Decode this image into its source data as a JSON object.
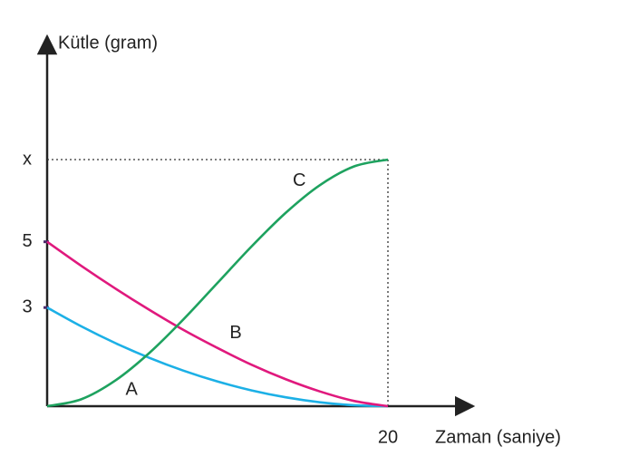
{
  "chart_data": {
    "type": "line",
    "y_label": "Kütle (gram)",
    "x_label": "Zaman (saniye)",
    "x": [
      0,
      2,
      4,
      6,
      8,
      10,
      12,
      14,
      16,
      18,
      20
    ],
    "xlim": [
      0,
      25
    ],
    "ylim": [
      0,
      11.25
    ],
    "xticks": [
      20
    ],
    "yticks": [
      3,
      5,
      {
        "value": 7.5,
        "label": "x"
      }
    ],
    "series": [
      {
        "name": "A",
        "color": "#1cb0e6",
        "values": [
          3,
          2.43,
          1.92,
          1.47,
          1.08,
          0.75,
          0.48,
          0.27,
          0.12,
          0.03,
          0
        ]
      },
      {
        "name": "B",
        "color": "#e0197d",
        "values": [
          5,
          4.27,
          3.58,
          2.93,
          2.32,
          1.77,
          1.26,
          0.82,
          0.45,
          0.16,
          0
        ]
      },
      {
        "name": "C",
        "color": "#1ea25f",
        "values": [
          0,
          0.21,
          0.78,
          1.62,
          2.64,
          3.75,
          4.86,
          5.88,
          6.72,
          7.29,
          7.5
        ]
      }
    ]
  }
}
